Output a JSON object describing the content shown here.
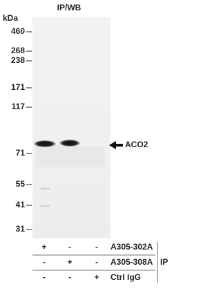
{
  "title": "IP/WB",
  "unit": "kDa",
  "markers": [
    "460",
    "268",
    "238",
    "171",
    "117",
    "71",
    "55",
    "41",
    "31"
  ],
  "target": "ACO2",
  "rows": [
    {
      "label": "A305-302A",
      "cells": [
        "+",
        "-",
        "-"
      ]
    },
    {
      "label": "A305-308A",
      "cells": [
        "-",
        "+",
        "-"
      ]
    },
    {
      "label": "Ctrl IgG",
      "cells": [
        "-",
        "-",
        "+"
      ]
    }
  ],
  "group": "IP"
}
